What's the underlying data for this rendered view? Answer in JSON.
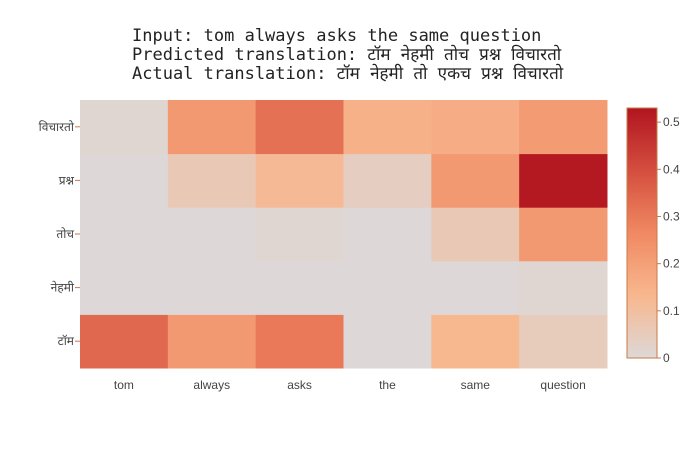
{
  "chart_data": {
    "type": "heatmap",
    "title_lines": [
      "Input: tom always asks the same question",
      "Predicted translation: टॉम नेहमी तोच प्रश्न विचारतो",
      "Actual translation: टॉम नेहमी तो एकच प्रश्न विचारतो"
    ],
    "x_labels": [
      "tom",
      "always",
      "asks",
      "the",
      "same",
      "question"
    ],
    "y_labels": [
      "टॉम",
      "नेहमी",
      "तोच",
      "प्रश्न",
      "विचारतो"
    ],
    "z": [
      [
        0.34,
        0.22,
        0.3,
        0.0,
        0.13,
        0.05
      ],
      [
        0.0,
        0.0,
        0.0,
        0.0,
        0.0,
        0.01
      ],
      [
        0.0,
        0.0,
        0.01,
        0.0,
        0.06,
        0.22
      ],
      [
        0.0,
        0.06,
        0.12,
        0.04,
        0.22,
        0.52
      ],
      [
        0.01,
        0.22,
        0.32,
        0.15,
        0.16,
        0.21
      ]
    ],
    "zmin": 0,
    "zmax": 0.53,
    "colorscale": [
      "#ddd8d7",
      "#f8b78e",
      "#f08962",
      "#d44e3e",
      "#b11520"
    ],
    "colorbar_ticks": [
      0,
      0.1,
      0.2,
      0.3,
      0.4,
      0.5
    ]
  }
}
